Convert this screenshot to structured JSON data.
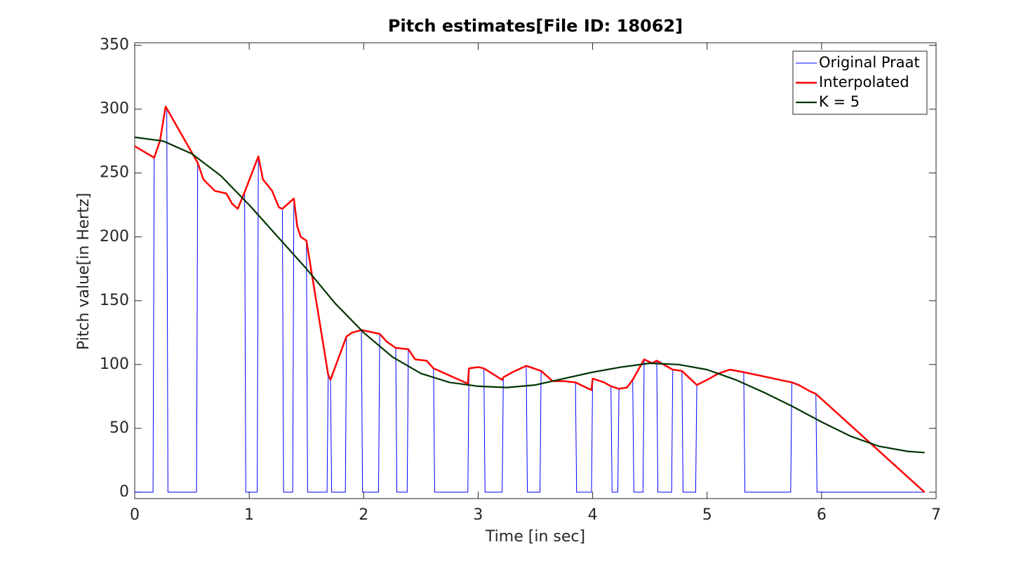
{
  "chart_data": {
    "type": "line",
    "title": "Pitch estimates[File ID: 18062]",
    "xlabel": "Time [in sec]",
    "ylabel": "Pitch value[in Hertz]",
    "xlim": [
      0,
      7
    ],
    "xticks": [
      0,
      1,
      2,
      3,
      4,
      5,
      6,
      7
    ],
    "ylim": [
      -5,
      352
    ],
    "yticks": [
      0,
      50,
      100,
      150,
      200,
      250,
      300,
      350
    ],
    "legend": "top-right",
    "series": [
      {
        "name": "Original Praat",
        "color": "#0000ff",
        "width": 1,
        "x": [
          0,
          0.16,
          0.17,
          0.22,
          0.27,
          0.28,
          0.29,
          0.54,
          0.55,
          0.6,
          0.7,
          0.8,
          0.85,
          0.9,
          0.96,
          0.97,
          1.07,
          1.08,
          1.12,
          1.2,
          1.26,
          1.29,
          1.3,
          1.38,
          1.39,
          1.42,
          1.45,
          1.5,
          1.51,
          1.68,
          1.69,
          1.71,
          1.72,
          1.84,
          1.85,
          1.9,
          1.98,
          1.99,
          2.13,
          2.14,
          2.2,
          2.28,
          2.29,
          2.38,
          2.39,
          2.45,
          2.55,
          2.61,
          2.62,
          2.91,
          2.92,
          3.0,
          3.05,
          3.06,
          3.21,
          3.22,
          3.3,
          3.42,
          3.43,
          3.54,
          3.55,
          3.65,
          3.75,
          3.85,
          3.86,
          3.99,
          4.0,
          4.1,
          4.16,
          4.17,
          4.22,
          4.23,
          4.3,
          4.35,
          4.36,
          4.44,
          4.45,
          4.52,
          4.56,
          4.57,
          4.69,
          4.7,
          4.78,
          4.79,
          4.9,
          4.91,
          5.0,
          5.1,
          5.2,
          5.32,
          5.33,
          5.73,
          5.74,
          5.8,
          5.9,
          5.95,
          5.96,
          6.9
        ],
        "values": [
          0,
          0,
          262,
          275,
          302,
          300,
          0,
          0,
          258,
          245,
          236,
          234,
          226,
          222,
          235,
          0,
          0,
          263,
          245,
          236,
          223,
          222,
          0,
          0,
          230,
          208,
          200,
          197,
          0,
          0,
          92,
          88,
          0,
          0,
          122,
          125,
          127,
          0,
          0,
          124,
          118,
          113,
          0,
          0,
          112,
          104,
          103,
          97,
          0,
          0,
          97,
          98,
          97,
          0,
          0,
          90,
          94,
          99,
          0,
          0,
          95,
          87,
          87,
          86,
          0,
          0,
          89,
          86,
          83,
          0,
          0,
          81,
          82,
          88,
          0,
          0,
          104,
          101,
          103,
          0,
          0,
          96,
          95,
          0,
          0,
          84,
          88,
          93,
          96,
          94,
          0,
          0,
          86,
          84,
          79,
          77,
          0,
          0
        ]
      },
      {
        "name": "Interpolated",
        "color": "#ff0000",
        "width": 2.5,
        "x": [
          0,
          0.17,
          0.22,
          0.27,
          0.55,
          0.6,
          0.7,
          0.8,
          0.85,
          0.9,
          0.96,
          1.08,
          1.12,
          1.2,
          1.26,
          1.29,
          1.39,
          1.42,
          1.45,
          1.5,
          1.69,
          1.71,
          1.85,
          1.9,
          1.98,
          2.14,
          2.2,
          2.28,
          2.39,
          2.45,
          2.55,
          2.61,
          2.91,
          2.92,
          3.0,
          3.05,
          3.21,
          3.22,
          3.3,
          3.42,
          3.55,
          3.65,
          3.75,
          3.85,
          3.99,
          4.0,
          4.1,
          4.16,
          4.23,
          4.3,
          4.35,
          4.45,
          4.52,
          4.56,
          4.7,
          4.78,
          4.91,
          5.0,
          5.1,
          5.2,
          5.32,
          5.74,
          5.8,
          5.9,
          5.95,
          6.9
        ],
        "values": [
          271,
          262,
          275,
          302,
          258,
          245,
          236,
          234,
          226,
          222,
          235,
          263,
          245,
          236,
          223,
          222,
          230,
          208,
          200,
          197,
          92,
          88,
          122,
          125,
          127,
          124,
          118,
          113,
          112,
          104,
          103,
          97,
          85,
          97,
          98,
          97,
          88,
          90,
          94,
          99,
          95,
          87,
          87,
          86,
          80,
          89,
          86,
          83,
          81,
          82,
          88,
          104,
          101,
          103,
          96,
          95,
          84,
          88,
          93,
          96,
          94,
          86,
          84,
          79,
          77,
          0
        ]
      },
      {
        "name": "K = 5",
        "color": "#003300",
        "width": 2.2,
        "x": [
          0,
          0.25,
          0.5,
          0.75,
          1,
          1.25,
          1.5,
          1.75,
          2,
          2.25,
          2.5,
          2.75,
          3,
          3.25,
          3.5,
          3.75,
          4,
          4.25,
          4.5,
          4.75,
          5,
          5.25,
          5.5,
          5.75,
          6,
          6.25,
          6.5,
          6.75,
          6.9
        ],
        "values": [
          278,
          275,
          265,
          248,
          225,
          200,
          175,
          148,
          125,
          106,
          93,
          86,
          83,
          82,
          84,
          89,
          94,
          98,
          101,
          100,
          96,
          88,
          78,
          67,
          55,
          44,
          36,
          32,
          31
        ]
      }
    ]
  }
}
